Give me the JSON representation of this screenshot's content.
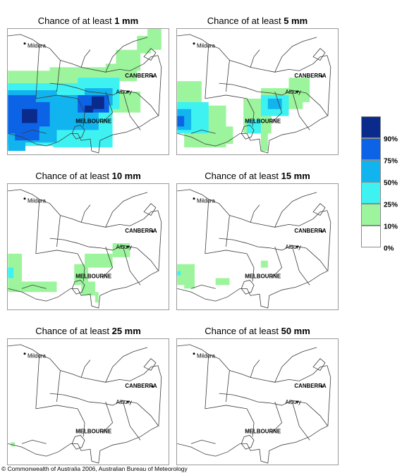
{
  "panels": [
    {
      "title_prefix": "Chance of at least",
      "title_amount": "1 mm",
      "labels": {
        "mildura": "Mildura",
        "canberra": "CANBERRA",
        "albury": "Albury",
        "melbourne": "MELBOURNE"
      }
    },
    {
      "title_prefix": "Chance of at least",
      "title_amount": "5 mm",
      "labels": {
        "mildura": "Mildura",
        "canberra": "CANBERRA",
        "albury": "Albury",
        "melbourne": "MELBOURNE"
      }
    },
    {
      "title_prefix": "Chance of at least",
      "title_amount": "10 mm",
      "labels": {
        "mildura": "Mildura",
        "canberra": "CANBERRA",
        "albury": "Albury",
        "melbourne": "MELBOURNE"
      }
    },
    {
      "title_prefix": "Chance of at least",
      "title_amount": "15 mm",
      "labels": {
        "mildura": "Mildura",
        "canberra": "CANBERRA",
        "albury": "Albury",
        "melbourne": "MELBOURNE"
      }
    },
    {
      "title_prefix": "Chance of at least",
      "title_amount": "25 mm",
      "labels": {
        "mildura": "Mildura",
        "canberra": "CANBERRA",
        "albury": "Albury",
        "melbourne": "MELBOURNE"
      }
    },
    {
      "title_prefix": "Chance of at least",
      "title_amount": "50 mm",
      "labels": {
        "mildura": "Mildura",
        "canberra": "CANBERRA",
        "albury": "Albury",
        "melbourne": "MELBOURNE"
      }
    }
  ],
  "legend": {
    "ticks": [
      "90%",
      "75%",
      "50%",
      "25%",
      "10%",
      "0%"
    ],
    "colors": [
      "#0a2a8c",
      "#0d63e6",
      "#11b4ee",
      "#3ef2f2",
      "#9cf59c",
      "#ffffff"
    ]
  },
  "colors": {
    "c10": "#9cf59c",
    "c25": "#3ef2f2",
    "c50": "#11b4ee",
    "c75": "#0d63e6",
    "c90": "#0a2a8c"
  },
  "copyright": "© Commonwealth of Australia 2006, Australian Bureau of Meteorology"
}
